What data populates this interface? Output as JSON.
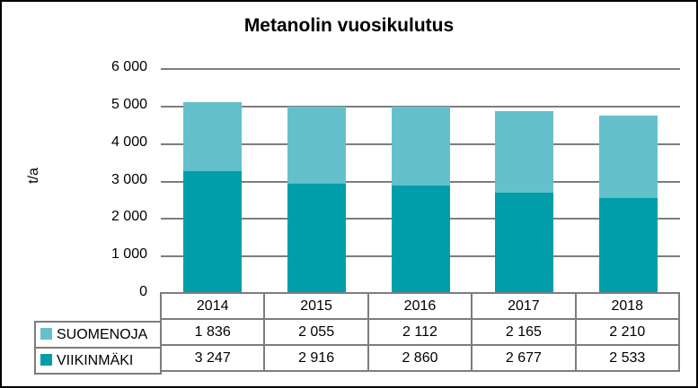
{
  "title": "Metanolin vuosikulutus",
  "colors": {
    "suomenoja": "#64C1CB",
    "viikinmaki": "#009EAB",
    "gridline": "#7D7D7D",
    "table_border": "#7D7D7D",
    "frame_border": "#000000",
    "text": "#000000"
  },
  "chart_data": {
    "type": "bar",
    "stacked": true,
    "title": "Metanolin vuosikulutus",
    "xlabel": "",
    "ylabel": "t/a",
    "categories": [
      "2014",
      "2015",
      "2016",
      "2017",
      "2018"
    ],
    "series": [
      {
        "name": "SUOMENOJA",
        "color": "#64C1CB",
        "values": [
          1836,
          2055,
          2112,
          2165,
          2210
        ]
      },
      {
        "name": "VIIKINMÄKI",
        "color": "#009EAB",
        "values": [
          3247,
          2916,
          2860,
          2677,
          2533
        ]
      }
    ],
    "ylim": [
      0,
      6000
    ],
    "ytick_step": 1000,
    "ytick_labels": [
      "0",
      "1 000",
      "2 000",
      "3 000",
      "4 000",
      "5 000",
      "6 000"
    ],
    "grid": true,
    "legend_position": "data-table-left"
  },
  "table": {
    "header": [
      "2014",
      "2015",
      "2016",
      "2017",
      "2018"
    ],
    "rows": [
      {
        "label": "SUOMENOJA",
        "values": [
          "1 836",
          "2 055",
          "2 112",
          "2 165",
          "2 210"
        ]
      },
      {
        "label": "VIIKINMÄKI",
        "values": [
          "3 247",
          "2 916",
          "2 860",
          "2 677",
          "2 533"
        ]
      }
    ]
  }
}
